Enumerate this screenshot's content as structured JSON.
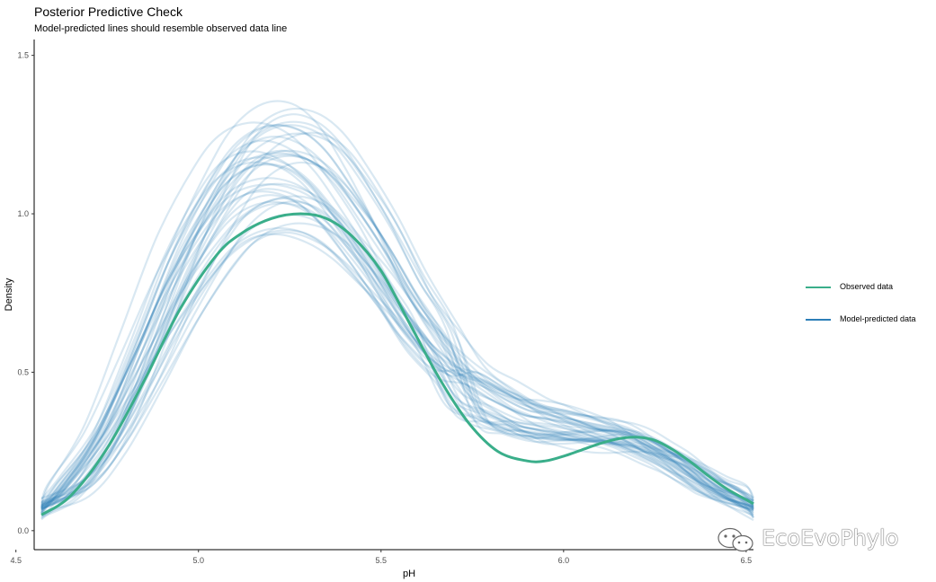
{
  "chart_data": {
    "type": "line",
    "title": "Posterior Predictive Check",
    "subtitle": "Model-predicted lines should resemble observed data line",
    "xlabel": "pH",
    "ylabel": "Density",
    "xlim": [
      4.55,
      6.52
    ],
    "ylim": [
      -0.06,
      1.55
    ],
    "x_ticks": [
      4.5,
      5.0,
      5.5,
      6.0,
      6.5
    ],
    "x_tick_labels": [
      "4.5",
      "5.0",
      "5.5",
      "6.0",
      "6.5"
    ],
    "y_ticks": [
      0.0,
      0.5,
      1.0,
      1.5
    ],
    "y_tick_labels": [
      "0.0",
      "0.5",
      "1.0",
      "1.5"
    ],
    "grid": false,
    "legend_position": "right",
    "legend": [
      {
        "label": "Observed data",
        "color": "#3aae8a"
      },
      {
        "label": "Model-predicted data",
        "color": "#2c7fb8"
      }
    ],
    "series": [
      {
        "name": "Observed data",
        "color": "#3aae8a",
        "x": [
          4.57,
          4.65,
          4.75,
          4.85,
          4.95,
          5.05,
          5.12,
          5.2,
          5.28,
          5.35,
          5.42,
          5.5,
          5.58,
          5.66,
          5.74,
          5.82,
          5.9,
          5.95,
          6.0,
          6.05,
          6.1,
          6.15,
          6.2,
          6.25,
          6.3,
          6.35,
          6.4,
          6.45,
          6.52
        ],
        "y": [
          0.05,
          0.11,
          0.26,
          0.47,
          0.7,
          0.87,
          0.94,
          0.985,
          1.0,
          0.985,
          0.93,
          0.82,
          0.65,
          0.48,
          0.34,
          0.25,
          0.22,
          0.22,
          0.235,
          0.255,
          0.275,
          0.29,
          0.295,
          0.285,
          0.255,
          0.215,
          0.17,
          0.13,
          0.085
        ]
      }
    ],
    "predicted": {
      "name": "Model-predicted data",
      "color": "#2c7fb8",
      "draws": 40,
      "x": [
        4.57,
        4.65,
        4.75,
        4.85,
        4.95,
        5.05,
        5.12,
        5.2,
        5.28,
        5.35,
        5.42,
        5.5,
        5.58,
        5.66,
        5.74,
        5.82,
        5.9,
        5.95,
        6.0,
        6.05,
        6.1,
        6.15,
        6.2,
        6.25,
        6.3,
        6.35,
        6.4,
        6.45,
        6.52
      ],
      "y_typical": [
        0.07,
        0.14,
        0.29,
        0.5,
        0.72,
        0.9,
        0.99,
        1.03,
        1.02,
        0.97,
        0.88,
        0.76,
        0.62,
        0.52,
        0.44,
        0.39,
        0.35,
        0.34,
        0.33,
        0.32,
        0.31,
        0.3,
        0.28,
        0.25,
        0.22,
        0.18,
        0.14,
        0.11,
        0.07
      ]
    }
  },
  "watermark": {
    "text": "EcoEvoPhylo",
    "icon": "wechat-icon"
  }
}
